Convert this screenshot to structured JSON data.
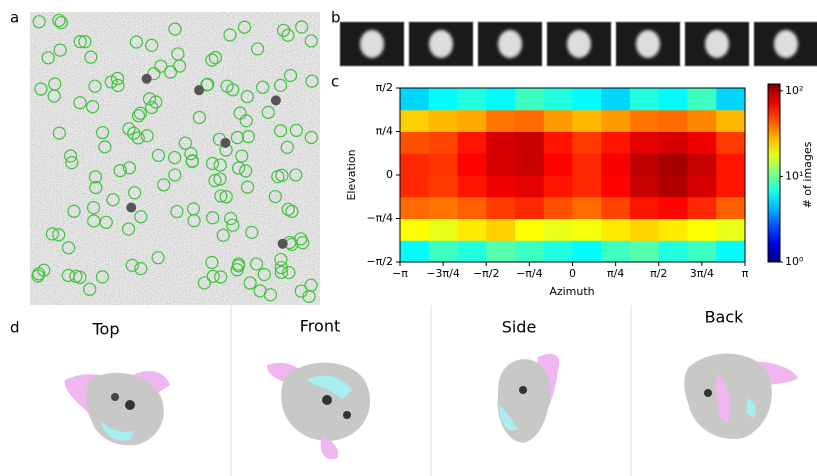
{
  "panel_labels": [
    "a",
    "b",
    "c",
    "d"
  ],
  "views": [
    "Top",
    "Front",
    "Side",
    "Back"
  ],
  "chart_data": {
    "type": "heatmap",
    "x_label": "Azimuth",
    "y_label": "Elevation",
    "colorbar_label": "# of images",
    "xlim": [
      -3.1416,
      3.1416
    ],
    "xticks": [
      {
        "value": -3.1416,
        "label": "−π"
      },
      {
        "value": -2.3562,
        "label": "−3π/4"
      },
      {
        "value": -1.5708,
        "label": "−π/2"
      },
      {
        "value": -0.7854,
        "label": "−π/4"
      },
      0,
      {
        "value": 0.7854,
        "label": "π/4"
      },
      {
        "value": 1.5708,
        "label": "π/2"
      },
      {
        "value": 2.3562,
        "label": "3π/4"
      },
      {
        "value": 3.1416,
        "label": "π"
      }
    ],
    "ylim": [
      -1.5708,
      1.5708
    ],
    "yticks": [
      {
        "value": -1.5708,
        "label": "−π/2"
      },
      {
        "value": -0.7854,
        "label": "−π/4"
      },
      0,
      {
        "value": 0.7854,
        "label": "π/4"
      },
      {
        "value": 1.5708,
        "label": "π/2"
      }
    ],
    "clim": [
      1,
      120
    ],
    "color_scale": "log",
    "cticks": [
      {
        "value": 1,
        "label": "10⁰"
      },
      {
        "value": 10,
        "label": "10¹"
      },
      {
        "value": 100,
        "label": "10²"
      }
    ],
    "values": [
      [
        6,
        8,
        7,
        9,
        8,
        7,
        6,
        8,
        9,
        7,
        8,
        6
      ],
      [
        20,
        18,
        22,
        25,
        20,
        18,
        19,
        22,
        24,
        22,
        20,
        18
      ],
      [
        40,
        38,
        42,
        50,
        55,
        45,
        40,
        48,
        60,
        65,
        55,
        42
      ],
      [
        55,
        50,
        60,
        70,
        75,
        60,
        55,
        65,
        85,
        95,
        80,
        60
      ],
      [
        55,
        52,
        65,
        80,
        85,
        65,
        55,
        68,
        90,
        100,
        85,
        60
      ],
      [
        45,
        48,
        60,
        80,
        85,
        60,
        50,
        60,
        75,
        80,
        70,
        50
      ],
      [
        25,
        28,
        30,
        38,
        40,
        32,
        28,
        32,
        38,
        40,
        35,
        28
      ],
      [
        5,
        6,
        7,
        6,
        8,
        7,
        6,
        5,
        7,
        6,
        8,
        5
      ]
    ]
  }
}
